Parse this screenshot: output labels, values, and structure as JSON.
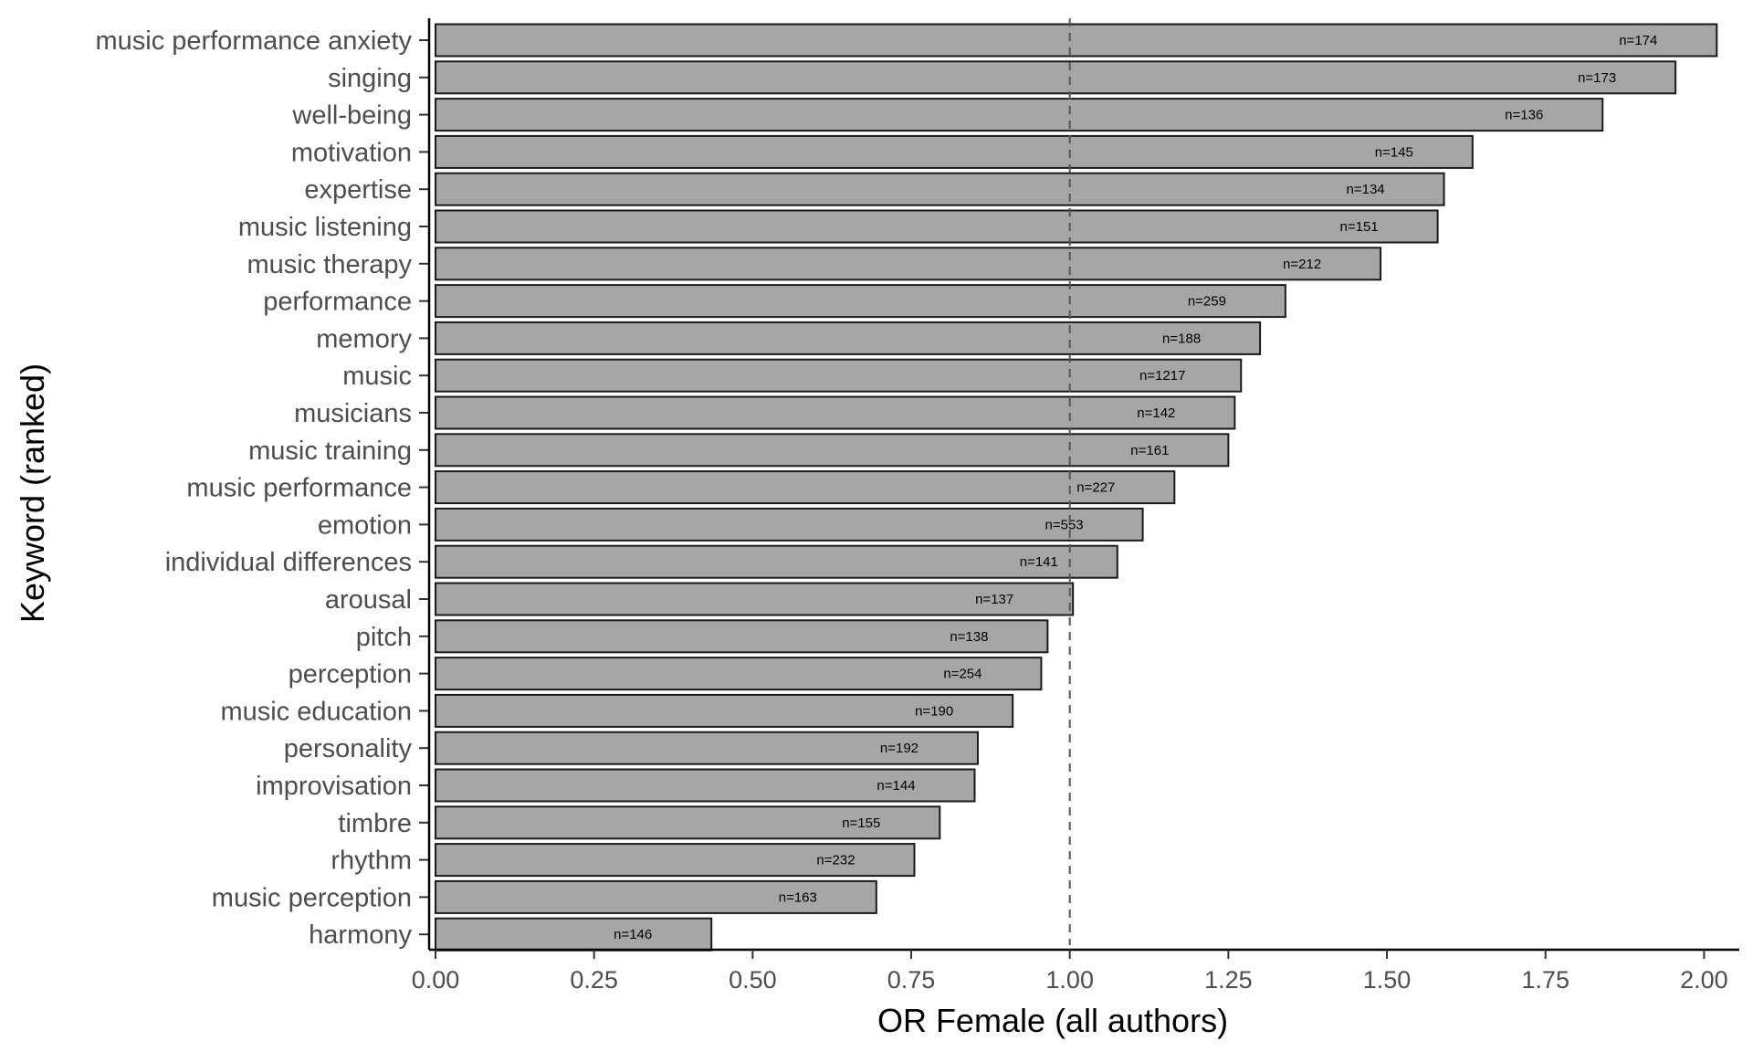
{
  "chart_data": {
    "type": "bar",
    "orientation": "horizontal",
    "xlabel": "OR Female (all authors)",
    "ylabel": "Keyword (ranked)",
    "xlim": [
      0,
      2.06
    ],
    "xticks": [
      "0.00",
      "0.25",
      "0.50",
      "0.75",
      "1.00",
      "1.25",
      "1.50",
      "1.75",
      "2.00"
    ],
    "reference_line": 1.0,
    "grid": false,
    "bar_color": "#a6a6a6",
    "categories": [
      "music performance anxiety",
      "singing",
      "well-being",
      "motivation",
      "expertise",
      "music listening",
      "music therapy",
      "performance",
      "memory",
      "music",
      "musicians",
      "music training",
      "music performance",
      "emotion",
      "individual differences",
      "arousal",
      "pitch",
      "perception",
      "music education",
      "personality",
      "improvisation",
      "timbre",
      "rhythm",
      "music perception",
      "harmony"
    ],
    "values": [
      2.02,
      1.955,
      1.84,
      1.635,
      1.59,
      1.58,
      1.49,
      1.34,
      1.3,
      1.27,
      1.26,
      1.25,
      1.165,
      1.115,
      1.075,
      1.005,
      0.965,
      0.955,
      0.91,
      0.855,
      0.85,
      0.795,
      0.755,
      0.695,
      0.435
    ],
    "n_labels": [
      "n=174",
      "n=173",
      "n=136",
      "n=145",
      "n=134",
      "n=151",
      "n=212",
      "n=259",
      "n=188",
      "n=1217",
      "n=142",
      "n=161",
      "n=227",
      "n=553",
      "n=141",
      "n=137",
      "n=138",
      "n=254",
      "n=190",
      "n=192",
      "n=144",
      "n=155",
      "n=232",
      "n=163",
      "n=146"
    ]
  }
}
